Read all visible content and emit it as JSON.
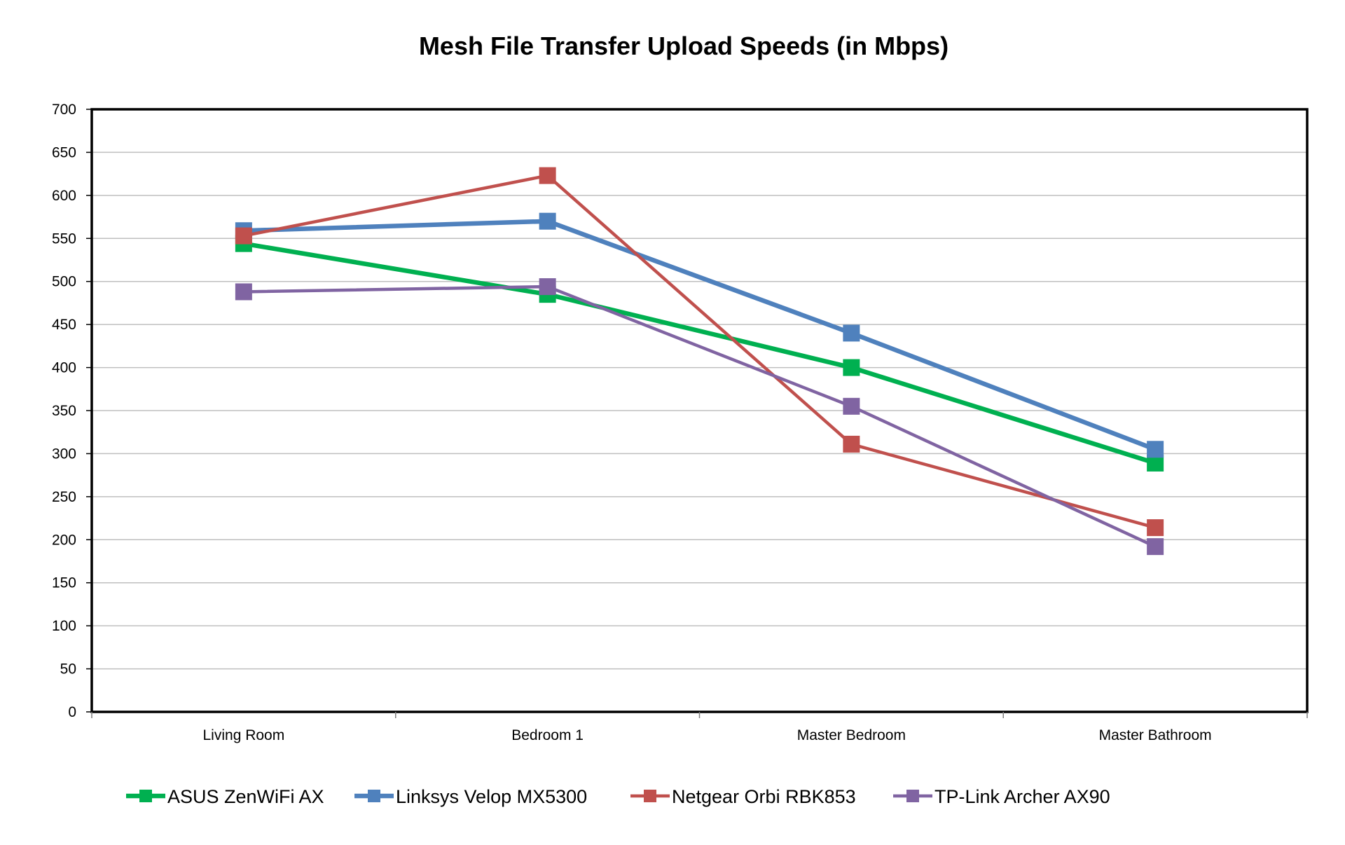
{
  "chart_data": {
    "type": "line",
    "title": "Mesh File Transfer Upload Speeds (in Mbps)",
    "xlabel": "",
    "ylabel": "",
    "categories": [
      "Living Room",
      "Bedroom 1",
      "Master Bedroom",
      "Master Bathroom"
    ],
    "ylim": [
      0,
      700
    ],
    "ytick_step": 50,
    "grid": true,
    "legend": "bottom",
    "series": [
      {
        "name": "ASUS ZenWiFi AX",
        "color": "#00b050",
        "values": [
          544,
          485,
          400,
          289
        ]
      },
      {
        "name": "Linksys Velop MX5300",
        "color": "#4f81bd",
        "values": [
          559,
          570,
          440,
          305
        ]
      },
      {
        "name": "Netgear Orbi RBK853",
        "color": "#c0504d",
        "values": [
          553,
          623,
          311,
          214
        ]
      },
      {
        "name": "TP-Link Archer AX90",
        "color": "#8064a2",
        "values": [
          488,
          494,
          355,
          192
        ]
      }
    ]
  }
}
